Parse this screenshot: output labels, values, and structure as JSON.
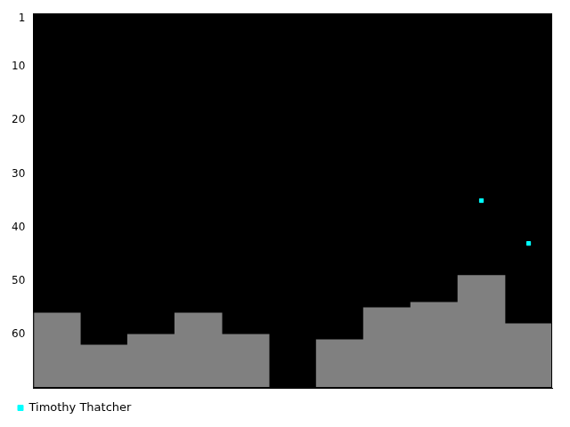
{
  "chart_data": {
    "type": "bar",
    "categories": [
      null,
      null,
      null,
      null,
      null,
      null,
      null,
      null,
      null,
      null,
      null
    ],
    "series": [
      {
        "type": "bar",
        "color": "#808080",
        "values": [
          56,
          62,
          60,
          56,
          60,
          null,
          61,
          55,
          54,
          49,
          58
        ]
      },
      {
        "name": "Timothy Thatcher",
        "type": "scatter",
        "marker": "square",
        "color": "#00ffff",
        "values": [
          null,
          null,
          null,
          null,
          null,
          null,
          null,
          null,
          null,
          35,
          43
        ]
      }
    ],
    "ylim": [
      0,
      70
    ],
    "yticks": [
      1,
      10,
      20,
      30,
      40,
      50,
      60
    ],
    "grid": false,
    "legend": "lower left",
    "tick_labels": "y"
  }
}
